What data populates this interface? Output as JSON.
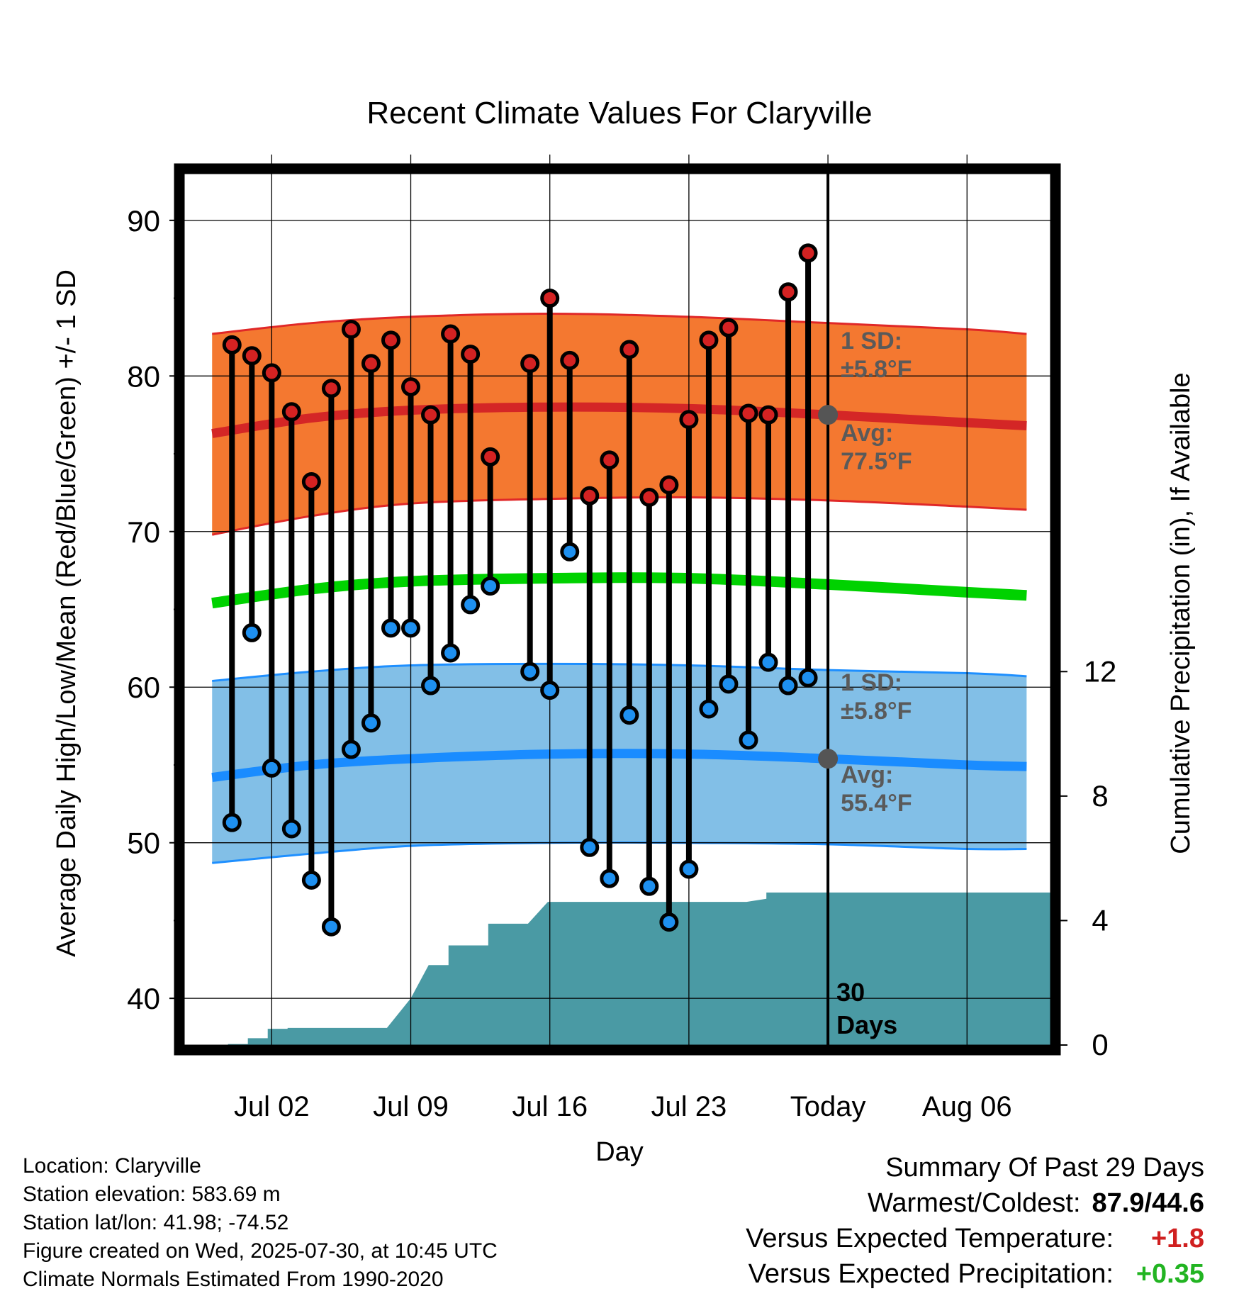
{
  "chart_data": {
    "type": "line",
    "title": "Recent Climate Values For Claryville",
    "xlabel": "Day",
    "ylabel": "Average Daily High/Low/Mean (Red/Blue/Green) +/- 1 SD",
    "y2label": "Cumulative Precipitation (in), If Available",
    "ylim": [
      37,
      93
    ],
    "y2lim": [
      0,
      28
    ],
    "xlim": [
      -3.4,
      40.2
    ],
    "x_ticks": [
      {
        "x": 1,
        "label": "Jul 02"
      },
      {
        "x": 8,
        "label": "Jul 09"
      },
      {
        "x": 15,
        "label": "Jul 16"
      },
      {
        "x": 22,
        "label": "Jul 23"
      },
      {
        "x": 29,
        "label": "Today"
      },
      {
        "x": 36,
        "label": "Aug 06"
      }
    ],
    "y_ticks": [
      40,
      50,
      60,
      70,
      80,
      90
    ],
    "y2_ticks": [
      0,
      4,
      8,
      12
    ],
    "grid": true,
    "normal_days": [
      -2,
      3,
      8,
      15,
      22,
      29,
      36,
      39
    ],
    "normal_high_avg": [
      76.3,
      77.3,
      77.8,
      78.0,
      77.9,
      77.5,
      77.0,
      76.8
    ],
    "normal_high_upper": [
      82.7,
      83.4,
      83.8,
      84.0,
      83.8,
      83.4,
      83.0,
      82.7
    ],
    "normal_high_lower": [
      69.8,
      71.0,
      71.8,
      72.1,
      72.2,
      72.0,
      71.6,
      71.4
    ],
    "normal_mean_avg": [
      65.4,
      66.3,
      66.8,
      67.0,
      67.0,
      66.6,
      66.1,
      65.9
    ],
    "normal_low_avg": [
      54.2,
      55.0,
      55.4,
      55.7,
      55.7,
      55.4,
      55.0,
      54.9
    ],
    "normal_low_upper": [
      60.4,
      61.0,
      61.4,
      61.5,
      61.4,
      61.1,
      60.9,
      60.7
    ],
    "normal_low_lower": [
      48.7,
      49.3,
      49.8,
      50.0,
      50.0,
      49.9,
      49.6,
      49.6
    ],
    "days": [
      -1,
      0,
      1,
      2,
      3,
      4,
      5,
      6,
      7,
      8,
      9,
      10,
      11,
      12,
      14,
      15,
      16,
      17,
      18,
      19,
      20,
      21,
      22,
      23,
      24,
      25,
      26,
      27,
      28
    ],
    "highs": [
      82.0,
      81.3,
      80.2,
      77.7,
      73.2,
      79.2,
      83.0,
      80.8,
      82.3,
      79.3,
      77.5,
      82.7,
      81.4,
      74.8,
      80.8,
      85.0,
      81.0,
      72.3,
      74.6,
      81.7,
      72.2,
      73.0,
      77.2,
      82.3,
      83.1,
      77.6,
      77.5,
      85.4,
      87.9
    ],
    "lows": [
      51.3,
      63.5,
      54.8,
      50.9,
      47.6,
      44.6,
      56.0,
      57.7,
      63.8,
      63.8,
      60.1,
      62.2,
      65.3,
      66.5,
      61.0,
      59.8,
      68.7,
      49.7,
      47.7,
      58.2,
      47.2,
      44.9,
      48.3,
      58.6,
      60.2,
      56.6,
      61.6,
      60.1,
      60.6
    ],
    "precip_cumulative": {
      "x": [
        -3.4,
        -1.2,
        -1.2,
        -0.2,
        -0.2,
        0.8,
        0.8,
        1.8,
        1.8,
        6.8,
        6.8,
        8.0,
        8.9,
        8.9,
        9.9,
        9.9,
        10.9,
        10.9,
        11.9,
        11.9,
        12.9,
        13.9,
        14.9,
        15.9,
        15.9,
        24.9,
        25.9,
        25.9,
        40.2
      ],
      "y": [
        0,
        0,
        0.03,
        0.03,
        0.22,
        0.22,
        0.52,
        0.52,
        0.55,
        0.55,
        0.55,
        1.5,
        2.57,
        2.57,
        2.57,
        3.2,
        3.2,
        3.2,
        3.2,
        3.9,
        3.9,
        3.9,
        4.6,
        4.6,
        4.6,
        4.6,
        4.7,
        4.9,
        4.9
      ]
    },
    "annotations": {
      "high_sd": "1 SD:",
      "high_sd_val": "±5.8°F",
      "high_avg_lbl": "Avg:",
      "high_avg_val": "77.5°F",
      "low_sd": "1 SD:",
      "low_sd_val": "±5.8°F",
      "low_avg_lbl": "Avg:",
      "low_avg_val": "55.4°F",
      "days_count": "30",
      "days_word": "Days",
      "high_avg_marker": 77.5,
      "low_avg_marker": 55.4
    },
    "colors": {
      "high_band": "#f47830",
      "high_edge": "#e02828",
      "high_avg": "#d42626",
      "low_band": "#82bfe7",
      "low_edge": "#1e8fff",
      "low_avg": "#1a8cff",
      "mean": "#00d200",
      "precip": "#4a9aa4",
      "high_dot": "#d42222",
      "low_dot": "#1e90f0",
      "annot": "#5a5a5a"
    }
  },
  "footer": {
    "location": "Location: Claryville",
    "elevation": "Station elevation: 583.69 m",
    "latlon": "Station lat/lon: 41.98; -74.52",
    "created": "Figure created on Wed, 2025-07-30, at 10:45 UTC",
    "normals": "Climate Normals Estimated From 1990-2020"
  },
  "summary": {
    "title": "Summary Of Past 29 Days",
    "warm_label": "Warmest/Coldest:",
    "warm_value": "87.9/44.6",
    "temp_label": "Versus Expected Temperature:",
    "temp_value": "+1.8",
    "precip_label": "Versus Expected Precipitation:",
    "precip_value": "+0.35"
  }
}
